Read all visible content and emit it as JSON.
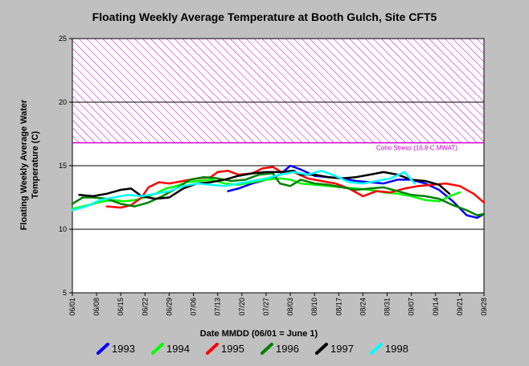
{
  "chart_data": {
    "type": "line",
    "title": "Floating Weekly Average Temperature at Booth Gulch, Site CFT5",
    "xlabel": "Date MMDD (06/01 = June 1)",
    "ylabel": "Floating Weekly Average Water Temperature (C)",
    "ylim": [
      5,
      25
    ],
    "yticks": [
      "5",
      "10",
      "15",
      "20",
      "25"
    ],
    "xlim": [
      0,
      119
    ],
    "xticks": [
      {
        "label": "06/01",
        "day": 0
      },
      {
        "label": "06/08",
        "day": 7
      },
      {
        "label": "06/15",
        "day": 14
      },
      {
        "label": "06/22",
        "day": 21
      },
      {
        "label": "06/29",
        "day": 28
      },
      {
        "label": "07/06",
        "day": 35
      },
      {
        "label": "07/13",
        "day": 42
      },
      {
        "label": "07/20",
        "day": 49
      },
      {
        "label": "07/27",
        "day": 56
      },
      {
        "label": "08/03",
        "day": 63
      },
      {
        "label": "08/10",
        "day": 70
      },
      {
        "label": "08/17",
        "day": 77
      },
      {
        "label": "08/24",
        "day": 84
      },
      {
        "label": "08/31",
        "day": 91
      },
      {
        "label": "09/07",
        "day": 98
      },
      {
        "label": "09/14",
        "day": 105
      },
      {
        "label": "09/21",
        "day": 112
      },
      {
        "label": "09/28",
        "day": 119
      }
    ],
    "grid_y": [
      10,
      15,
      20
    ],
    "stress_band": {
      "from": 16.8,
      "to": 25,
      "label": "Coho Stress (16.8 C MWAT)",
      "color": "#cc00cc"
    },
    "legend_position": "bottom",
    "series": [
      {
        "name": "1993",
        "color": "#0000ff",
        "x": [
          45,
          48,
          52,
          56,
          60,
          63,
          66,
          70,
          74,
          78,
          82,
          86,
          90,
          94,
          98,
          102,
          106,
          110,
          114,
          117,
          119
        ],
        "y": [
          13.0,
          13.2,
          13.6,
          13.9,
          14.3,
          15.0,
          14.7,
          14.2,
          14.1,
          14.0,
          13.8,
          13.7,
          13.6,
          13.9,
          13.9,
          13.6,
          13.1,
          12.2,
          11.1,
          10.9,
          11.2
        ]
      },
      {
        "name": "1994",
        "color": "#00ff00",
        "x": [
          0,
          3,
          6,
          9,
          12,
          15,
          18,
          21,
          24,
          27,
          30,
          33,
          36,
          40,
          44,
          48,
          52,
          56,
          60,
          63,
          66,
          70,
          74,
          78,
          82,
          86,
          90,
          94,
          98,
          102,
          106,
          110,
          112
        ],
        "y": [
          11.6,
          11.8,
          12.0,
          12.2,
          12.3,
          12.2,
          12.3,
          12.5,
          12.8,
          13.2,
          13.4,
          13.7,
          13.8,
          13.9,
          13.6,
          13.5,
          13.7,
          13.9,
          14.0,
          13.9,
          13.6,
          13.5,
          13.4,
          13.3,
          13.2,
          13.1,
          12.9,
          12.8,
          12.6,
          12.3,
          12.2,
          12.7,
          12.9
        ]
      },
      {
        "name": "1995",
        "color": "#ff0000",
        "x": [
          10,
          14,
          17,
          20,
          22,
          25,
          28,
          32,
          36,
          40,
          42,
          45,
          48,
          52,
          55,
          58,
          61,
          64,
          68,
          72,
          76,
          80,
          84,
          88,
          92,
          96,
          100,
          104,
          108,
          112,
          116,
          119
        ],
        "y": [
          11.8,
          11.7,
          11.9,
          12.5,
          13.3,
          13.7,
          13.6,
          13.8,
          14.0,
          14.1,
          14.5,
          14.6,
          14.3,
          14.4,
          14.8,
          14.9,
          14.4,
          14.5,
          14.0,
          13.8,
          13.6,
          13.2,
          12.6,
          13.0,
          12.9,
          13.2,
          13.4,
          13.5,
          13.6,
          13.4,
          12.8,
          12.1
        ]
      },
      {
        "name": "1996",
        "color": "#008000",
        "x": [
          0,
          3,
          6,
          10,
          14,
          18,
          22,
          26,
          30,
          34,
          38,
          42,
          46,
          50,
          54,
          58,
          60,
          63,
          66,
          70,
          74,
          78,
          82,
          86,
          90,
          94,
          98,
          102,
          106,
          110,
          114,
          117,
          119
        ],
        "y": [
          12.0,
          12.5,
          12.5,
          12.4,
          12.0,
          11.8,
          12.1,
          12.6,
          13.2,
          13.9,
          14.1,
          14.0,
          13.8,
          13.9,
          14.3,
          14.4,
          13.6,
          13.4,
          13.9,
          13.6,
          13.5,
          13.3,
          13.1,
          13.2,
          13.3,
          13.0,
          12.7,
          12.6,
          12.4,
          11.9,
          11.5,
          11.1,
          11.2
        ]
      },
      {
        "name": "1997",
        "color": "#000000",
        "x": [
          2,
          6,
          10,
          14,
          17,
          20,
          24,
          28,
          32,
          36,
          40,
          44,
          48,
          52,
          56,
          60,
          64,
          66,
          70,
          74,
          78,
          82,
          86,
          90,
          94,
          98,
          102,
          106,
          109
        ],
        "y": [
          12.7,
          12.6,
          12.8,
          13.1,
          13.2,
          12.6,
          12.4,
          12.5,
          13.2,
          13.6,
          13.7,
          13.9,
          14.2,
          14.4,
          14.5,
          14.5,
          14.6,
          14.3,
          14.3,
          14.1,
          14.0,
          14.1,
          14.3,
          14.5,
          14.3,
          13.9,
          13.8,
          13.5,
          12.8
        ]
      },
      {
        "name": "1998",
        "color": "#00ffff",
        "x": [
          0,
          4,
          8,
          12,
          16,
          20,
          24,
          28,
          32,
          36,
          40,
          44,
          48,
          52,
          56,
          60,
          64,
          68,
          72,
          76,
          80,
          84,
          88,
          92,
          96,
          99
        ],
        "y": [
          11.5,
          11.8,
          12.3,
          12.5,
          12.7,
          12.6,
          12.8,
          13.0,
          13.4,
          13.6,
          13.5,
          13.4,
          13.6,
          13.8,
          14.0,
          14.3,
          14.5,
          14.3,
          14.6,
          14.2,
          13.7,
          13.6,
          13.8,
          14.0,
          14.5,
          13.6
        ]
      }
    ]
  }
}
